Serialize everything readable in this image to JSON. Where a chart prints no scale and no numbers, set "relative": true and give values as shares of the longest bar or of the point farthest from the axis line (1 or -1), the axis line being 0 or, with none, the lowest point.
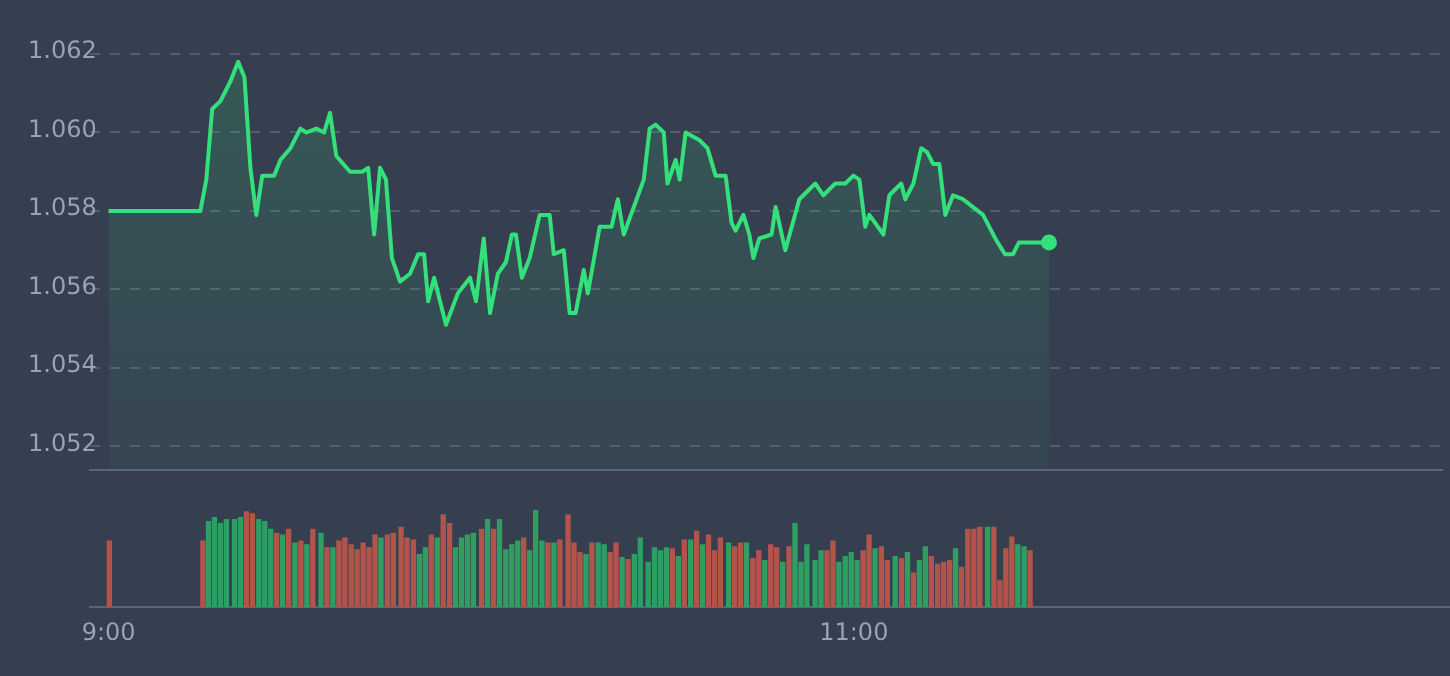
{
  "chart_data": [
    {
      "type": "area",
      "x": [
        9.0,
        9.248,
        9.264,
        9.28,
        9.302,
        9.329,
        9.35,
        9.367,
        9.383,
        9.399,
        9.415,
        9.447,
        9.464,
        9.491,
        9.518,
        9.534,
        9.561,
        9.582,
        9.598,
        9.615,
        9.652,
        9.685,
        9.701,
        9.717,
        9.733,
        9.749,
        9.765,
        9.787,
        9.814,
        9.836,
        9.852,
        9.863,
        9.879,
        9.911,
        9.943,
        9.976,
        9.992,
        10.013,
        10.03,
        10.051,
        10.073,
        10.089,
        10.1,
        10.116,
        10.137,
        10.164,
        10.191,
        10.202,
        10.229,
        10.245,
        10.261,
        10.283,
        10.294,
        10.326,
        10.358,
        10.375,
        10.391,
        10.445,
        10.461,
        10.477,
        10.499,
        10.509,
        10.531,
        10.542,
        10.558,
        10.596,
        10.617,
        10.639,
        10.666,
        10.682,
        10.693,
        10.714,
        10.73,
        10.741,
        10.757,
        10.79,
        10.801,
        10.827,
        10.865,
        10.908,
        10.93,
        10.962,
        10.989,
        11.011,
        11.027,
        11.043,
        11.054,
        11.092,
        11.108,
        11.14,
        11.151,
        11.173,
        11.194,
        11.21,
        11.226,
        11.243,
        11.259,
        11.28,
        11.307,
        11.334,
        11.361,
        11.394,
        11.42,
        11.442,
        11.458,
        11.501,
        11.539
      ],
      "values": [
        1.058,
        1.058,
        1.0588,
        1.0606,
        1.0608,
        1.0613,
        1.0618,
        1.0614,
        1.0591,
        1.0579,
        1.0589,
        1.0589,
        1.0593,
        1.0596,
        1.0601,
        1.06,
        1.0601,
        1.06,
        1.0605,
        1.0594,
        1.059,
        1.059,
        1.0591,
        1.0574,
        1.0591,
        1.0588,
        1.0568,
        1.0562,
        1.0564,
        1.0569,
        1.0569,
        1.0557,
        1.0563,
        1.0551,
        1.0559,
        1.0563,
        1.0557,
        1.0573,
        1.0554,
        1.0564,
        1.0567,
        1.0574,
        1.0574,
        1.0563,
        1.0568,
        1.0579,
        1.0579,
        1.0569,
        1.057,
        1.0554,
        1.0554,
        1.0565,
        1.0559,
        1.0576,
        1.0576,
        1.0583,
        1.0574,
        1.0588,
        1.0601,
        1.0602,
        1.06,
        1.0587,
        1.0593,
        1.0588,
        1.06,
        1.0598,
        1.0596,
        1.0589,
        1.0589,
        1.0577,
        1.0575,
        1.0579,
        1.0574,
        1.0568,
        1.0573,
        1.0574,
        1.0581,
        1.057,
        1.0583,
        1.0587,
        1.0584,
        1.0587,
        1.0587,
        1.0589,
        1.0588,
        1.0576,
        1.0579,
        1.0574,
        1.0584,
        1.0587,
        1.0583,
        1.0587,
        1.0596,
        1.0595,
        1.0592,
        1.0592,
        1.0579,
        1.0584,
        1.0583,
        1.0581,
        1.0579,
        1.0573,
        1.0569,
        1.0569,
        1.0572,
        1.0572,
        1.0572
      ],
      "color": "#33e07a",
      "xlim": [
        8.95,
        12.6
      ],
      "ylim": [
        1.0514,
        1.062
      ],
      "yticks": [
        {
          "value": 1.052,
          "label": "1.052"
        },
        {
          "value": 1.054,
          "label": "1.054"
        },
        {
          "value": 1.056,
          "label": "1.056"
        },
        {
          "value": 1.058,
          "label": "1.058"
        },
        {
          "value": 1.06,
          "label": "1.060"
        },
        {
          "value": 1.062,
          "label": "1.062"
        }
      ],
      "grid": "y",
      "tick_labels": "y",
      "legend": false
    },
    {
      "type": "bar",
      "relative": true,
      "x": [
        9.002,
        9.253,
        9.268,
        9.284,
        9.3,
        9.316,
        9.338,
        9.354,
        9.37,
        9.386,
        9.403,
        9.419,
        9.435,
        9.451,
        9.467,
        9.483,
        9.5,
        9.516,
        9.532,
        9.548,
        9.57,
        9.586,
        9.602,
        9.618,
        9.634,
        9.651,
        9.667,
        9.683,
        9.699,
        9.715,
        9.731,
        9.748,
        9.764,
        9.785,
        9.801,
        9.818,
        9.834,
        9.85,
        9.866,
        9.882,
        9.898,
        9.915,
        9.931,
        9.947,
        9.963,
        9.979,
        10.001,
        10.017,
        10.033,
        10.049,
        10.066,
        10.082,
        10.098,
        10.114,
        10.13,
        10.146,
        10.163,
        10.179,
        10.195,
        10.211,
        10.233,
        10.249,
        10.265,
        10.281,
        10.297,
        10.314,
        10.33,
        10.346,
        10.362,
        10.378,
        10.394,
        10.411,
        10.427,
        10.448,
        10.465,
        10.481,
        10.497,
        10.513,
        10.529,
        10.545,
        10.562,
        10.578,
        10.594,
        10.61,
        10.626,
        10.642,
        10.664,
        10.68,
        10.696,
        10.712,
        10.729,
        10.745,
        10.761,
        10.777,
        10.793,
        10.809,
        10.826,
        10.842,
        10.858,
        10.874,
        10.896,
        10.912,
        10.928,
        10.944,
        10.96,
        10.977,
        10.993,
        11.009,
        11.025,
        11.041,
        11.057,
        11.074,
        11.09,
        11.111,
        11.128,
        11.144,
        11.16,
        11.176,
        11.192,
        11.208,
        11.225,
        11.241,
        11.257,
        11.273,
        11.289,
        11.306,
        11.322,
        11.338,
        11.359,
        11.376,
        11.392,
        11.408,
        11.424,
        11.44,
        11.457,
        11.473
      ],
      "values": [
        0.68,
        0.68,
        0.88,
        0.92,
        0.86,
        0.9,
        0.9,
        0.92,
        0.98,
        0.96,
        0.9,
        0.88,
        0.8,
        0.76,
        0.74,
        0.8,
        0.66,
        0.68,
        0.64,
        0.8,
        0.76,
        0.61,
        0.61,
        0.68,
        0.71,
        0.64,
        0.59,
        0.66,
        0.61,
        0.74,
        0.71,
        0.74,
        0.76,
        0.82,
        0.71,
        0.69,
        0.54,
        0.61,
        0.74,
        0.71,
        0.95,
        0.86,
        0.61,
        0.71,
        0.74,
        0.76,
        0.8,
        0.9,
        0.8,
        0.9,
        0.59,
        0.64,
        0.68,
        0.71,
        0.58,
        1,
        0.68,
        0.66,
        0.66,
        0.69,
        0.95,
        0.66,
        0.56,
        0.54,
        0.66,
        0.66,
        0.64,
        0.56,
        0.66,
        0.51,
        0.49,
        0.54,
        0.71,
        0.46,
        0.61,
        0.58,
        0.61,
        0.6,
        0.52,
        0.69,
        0.69,
        0.78,
        0.64,
        0.74,
        0.58,
        0.71,
        0.66,
        0.62,
        0.66,
        0.66,
        0.5,
        0.58,
        0.48,
        0.64,
        0.61,
        0.46,
        0.62,
        0.86,
        0.46,
        0.64,
        0.48,
        0.58,
        0.58,
        0.68,
        0.46,
        0.52,
        0.56,
        0.48,
        0.58,
        0.74,
        0.6,
        0.62,
        0.48,
        0.52,
        0.5,
        0.56,
        0.35,
        0.48,
        0.62,
        0.52,
        0.44,
        0.46,
        0.48,
        0.6,
        0.41,
        0.8,
        0.8,
        0.82,
        0.82,
        0.82,
        0.27,
        0.6,
        0.72,
        0.64,
        0.62,
        0.58
      ],
      "colors": [
        "#b3544b",
        "#b3544b",
        "#2f9e63",
        "#2f9e63",
        "#2f9e63",
        "#2f9e63",
        "#2f9e63",
        "#2f9e63",
        "#b3544b",
        "#b3544b",
        "#2f9e63",
        "#2f9e63",
        "#2f9e63",
        "#b3544b",
        "#2f9e63",
        "#b3544b",
        "#2f9e63",
        "#b3544b",
        "#2f9e63",
        "#b3544b",
        "#2f9e63",
        "#b3544b",
        "#2f9e63",
        "#b3544b",
        "#b3544b",
        "#b3544b",
        "#b3544b",
        "#b3544b",
        "#b3544b",
        "#b3544b",
        "#2f9e63",
        "#b3544b",
        "#b3544b",
        "#b3544b",
        "#b3544b",
        "#b3544b",
        "#2f9e63",
        "#2f9e63",
        "#b3544b",
        "#2f9e63",
        "#b3544b",
        "#b3544b",
        "#2f9e63",
        "#2f9e63",
        "#2f9e63",
        "#2f9e63",
        "#b3544b",
        "#2f9e63",
        "#b3544b",
        "#2f9e63",
        "#2f9e63",
        "#2f9e63",
        "#2f9e63",
        "#b3544b",
        "#2f9e63",
        "#2f9e63",
        "#2f9e63",
        "#b3544b",
        "#2f9e63",
        "#b3544b",
        "#b3544b",
        "#b3544b",
        "#b3544b",
        "#2f9e63",
        "#b3544b",
        "#2f9e63",
        "#2f9e63",
        "#b3544b",
        "#b3544b",
        "#2f9e63",
        "#b3544b",
        "#2f9e63",
        "#2f9e63",
        "#2f9e63",
        "#2f9e63",
        "#2f9e63",
        "#2f9e63",
        "#b3544b",
        "#2f9e63",
        "#b3544b",
        "#2f9e63",
        "#b3544b",
        "#2f9e63",
        "#b3544b",
        "#b3544b",
        "#b3544b",
        "#2f9e63",
        "#b3544b",
        "#b3544b",
        "#2f9e63",
        "#b3544b",
        "#b3544b",
        "#2f9e63",
        "#b3544b",
        "#b3544b",
        "#2f9e63",
        "#b3544b",
        "#2f9e63",
        "#2f9e63",
        "#2f9e63",
        "#2f9e63",
        "#2f9e63",
        "#b3544b",
        "#b3544b",
        "#2f9e63",
        "#2f9e63",
        "#2f9e63",
        "#2f9e63",
        "#b3544b",
        "#b3544b",
        "#2f9e63",
        "#b3544b",
        "#b3544b",
        "#2f9e63",
        "#b3544b",
        "#2f9e63",
        "#b3544b",
        "#2f9e63",
        "#2f9e63",
        "#b3544b",
        "#b3544b",
        "#b3544b",
        "#b3544b",
        "#2f9e63",
        "#b3544b",
        "#b3544b",
        "#b3544b",
        "#b3544b",
        "#2f9e63",
        "#b3544b",
        "#b3544b",
        "#b3544b",
        "#b3544b",
        "#2f9e63",
        "#2f9e63",
        "#b3544b"
      ],
      "xlim": [
        8.95,
        12.6
      ],
      "xticks": [
        {
          "value": 9,
          "label": "9:00"
        },
        {
          "value": 11,
          "label": "11:00"
        }
      ],
      "tick_labels": "x",
      "legend": false
    }
  ]
}
